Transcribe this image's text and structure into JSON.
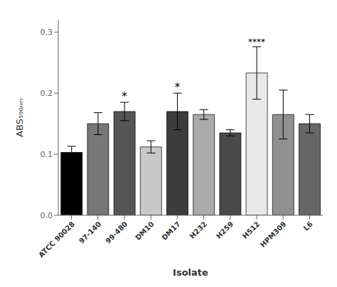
{
  "chart_data": {
    "type": "bar",
    "xlabel": "Isolate",
    "ylabel": "ABS₅₉₀ₙₘ",
    "categories": [
      "ATCC 90028",
      "97-140",
      "99-480",
      "DM10",
      "DM17",
      "H232",
      "H259",
      "H512",
      "HPM309",
      "L6"
    ],
    "values": [
      0.103,
      0.15,
      0.17,
      0.112,
      0.17,
      0.165,
      0.135,
      0.233,
      0.165,
      0.15
    ],
    "errors": [
      0.01,
      0.018,
      0.015,
      0.01,
      0.03,
      0.008,
      0.005,
      0.043,
      0.04,
      0.015
    ],
    "colors": [
      "#000000",
      "#777777",
      "#555555",
      "#c8c8c8",
      "#3c3c3c",
      "#aaaaaa",
      "#4a4a4a",
      "#e8e8e8",
      "#909090",
      "#666666"
    ],
    "annotations": [
      {
        "category": "99-480",
        "text": "*"
      },
      {
        "category": "DM17",
        "text": "*"
      },
      {
        "category": "H512",
        "text": "****"
      }
    ],
    "ylim": [
      0.0,
      0.32
    ],
    "yticks": [
      {
        "value": 0.0,
        "label": "0.0"
      },
      0.1,
      0.2,
      0.3
    ],
    "grid": false
  }
}
